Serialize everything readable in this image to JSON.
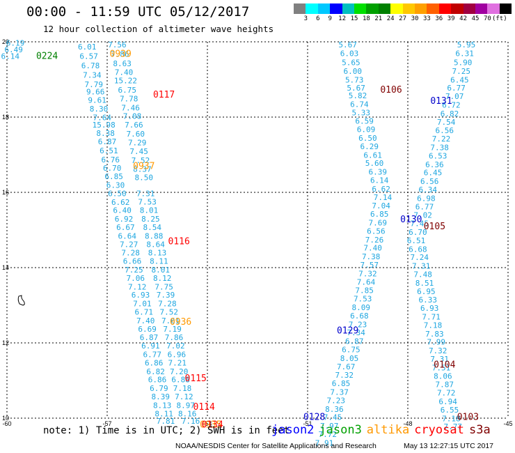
{
  "header": {
    "title": "00:00 - 11:59 UTC 05/12/2017",
    "subtitle": "12 hour collection of altimeter wave heights"
  },
  "scale": {
    "colors": [
      "#808080",
      "#00ffff",
      "#00c8ff",
      "#0000ff",
      "#00c0c0",
      "#00e000",
      "#00a000",
      "#008000",
      "#ffff00",
      "#ffc800",
      "#ffa000",
      "#ff6000",
      "#ff0000",
      "#c00000",
      "#a00040",
      "#a000a0",
      "#e070e0",
      "#000000"
    ],
    "labels": [
      "3",
      "6",
      "9",
      "12",
      "15",
      "18",
      "21",
      "24",
      "27",
      "30",
      "33",
      "36",
      "39",
      "42",
      "45",
      "70",
      "(ft)"
    ]
  },
  "axes": {
    "y_ticks": [
      "20",
      "18",
      "16",
      "14",
      "12",
      "10"
    ],
    "x_ticks": [
      "-60",
      "-57",
      "-54",
      "-51",
      "-48",
      "-45"
    ]
  },
  "tracks": [
    {
      "id": "0224",
      "color": "#008000",
      "lat": 19.55,
      "lon": -58.8
    },
    {
      "id": "0939",
      "color": "#ff9900",
      "lat": 19.6,
      "lon": -56.6
    },
    {
      "id": "0117",
      "color": "#ff0000",
      "lat": 18.52,
      "lon": -55.3
    },
    {
      "id": "0937",
      "color": "#ff9900",
      "lat": 16.62,
      "lon": -55.9
    },
    {
      "id": "0116",
      "color": "#ff0000",
      "lat": 14.62,
      "lon": -54.85
    },
    {
      "id": "0936",
      "color": "#ff9900",
      "lat": 12.48,
      "lon": -54.8
    },
    {
      "id": "0115",
      "color": "#ff0000",
      "lat": 10.98,
      "lon": -54.35
    },
    {
      "id": "0114",
      "color": "#ff0000",
      "lat": 10.22,
      "lon": -54.1
    },
    {
      "id": "0935",
      "color": "#ff9900",
      "lat": 9.75,
      "lon": -53.9
    },
    {
      "id": "0134",
      "color": "#ff0000",
      "lat": 9.75,
      "lon": -53.85
    },
    {
      "id": "0106",
      "color": "#800000",
      "lat": 18.65,
      "lon": -48.5
    },
    {
      "id": "0131",
      "color": "#0000cc",
      "lat": 18.35,
      "lon": -47.0
    },
    {
      "id": "0130",
      "color": "#0000cc",
      "lat": 15.2,
      "lon": -47.9
    },
    {
      "id": "0105",
      "color": "#800000",
      "lat": 15.02,
      "lon": -47.2
    },
    {
      "id": "0129",
      "color": "#0000cc",
      "lat": 12.25,
      "lon": -49.8
    },
    {
      "id": "0104",
      "color": "#800000",
      "lat": 11.34,
      "lon": -46.9
    },
    {
      "id": "0128",
      "color": "#0000cc",
      "lat": 9.95,
      "lon": -50.8
    },
    {
      "id": "0103",
      "color": "#800000",
      "lat": 9.95,
      "lon": -46.2
    }
  ],
  "note": "note: 1) Time is in UTC; 2) SWH is in feet",
  "legend": [
    {
      "label": "jason2",
      "color": "#0000ff"
    },
    {
      "label": "jason3",
      "color": "#00a000"
    },
    {
      "label": "altika",
      "color": "#ff9900"
    },
    {
      "label": "cryosat",
      "color": "#ff0000"
    },
    {
      "label": "s3a",
      "color": "#800000"
    }
  ],
  "footer_left": "NOAA/NESDIS Center for Satellite Applications and Research",
  "footer_right": "May 13 12:27:15 UTC 2017",
  "obs": [
    {
      "t": "6.19",
      "lat": 19.9,
      "lon": -59.75
    },
    {
      "t": "6.49",
      "lat": 19.72,
      "lon": -59.8
    },
    {
      "t": "6.14",
      "lat": 19.55,
      "lon": -59.9
    },
    {
      "t": "6.01",
      "lat": 19.8,
      "lon": -57.6
    },
    {
      "t": "6.57",
      "lat": 19.55,
      "lon": -57.55
    },
    {
      "t": "6.78",
      "lat": 19.3,
      "lon": -57.5
    },
    {
      "t": "7.34",
      "lat": 19.05,
      "lon": -57.45
    },
    {
      "t": "7.79",
      "lat": 18.8,
      "lon": -57.4
    },
    {
      "t": "9.66",
      "lat": 18.6,
      "lon": -57.35
    },
    {
      "t": "9.61",
      "lat": 18.38,
      "lon": -57.3
    },
    {
      "t": "8.30",
      "lat": 18.15,
      "lon": -57.25
    },
    {
      "t": "7.64",
      "lat": 17.92,
      "lon": -57.15
    },
    {
      "t": "15.98",
      "lat": 17.72,
      "lon": -57.1
    },
    {
      "t": "8.38",
      "lat": 17.5,
      "lon": -57.05
    },
    {
      "t": "6.87",
      "lat": 17.28,
      "lon": -57.0
    },
    {
      "t": "6.51",
      "lat": 17.04,
      "lon": -56.95
    },
    {
      "t": "6.76",
      "lat": 16.8,
      "lon": -56.9
    },
    {
      "t": "6.70",
      "lat": 16.57,
      "lon": -56.85
    },
    {
      "t": "6.85",
      "lat": 16.35,
      "lon": -56.8
    },
    {
      "t": "6.30",
      "lat": 16.12,
      "lon": -56.75
    },
    {
      "t": "6.50",
      "lat": 15.9,
      "lon": -56.7
    },
    {
      "t": "6.62",
      "lat": 15.67,
      "lon": -56.6
    },
    {
      "t": "6.40",
      "lat": 15.45,
      "lon": -56.55
    },
    {
      "t": "6.92",
      "lat": 15.22,
      "lon": -56.5
    },
    {
      "t": "6.67",
      "lat": 15.0,
      "lon": -56.45
    },
    {
      "t": "6.64",
      "lat": 14.77,
      "lon": -56.4
    },
    {
      "t": "7.27",
      "lat": 14.55,
      "lon": -56.35
    },
    {
      "t": "7.28",
      "lat": 14.32,
      "lon": -56.3
    },
    {
      "t": "6.66",
      "lat": 14.1,
      "lon": -56.25
    },
    {
      "t": "7.25",
      "lat": 13.87,
      "lon": -56.2
    },
    {
      "t": "7.06",
      "lat": 13.65,
      "lon": -56.15
    },
    {
      "t": "7.12",
      "lat": 13.42,
      "lon": -56.1
    },
    {
      "t": "6.93",
      "lat": 13.2,
      "lon": -56.0
    },
    {
      "t": "7.01",
      "lat": 12.97,
      "lon": -55.95
    },
    {
      "t": "6.71",
      "lat": 12.75,
      "lon": -55.9
    },
    {
      "t": "7.40",
      "lat": 12.52,
      "lon": -55.85
    },
    {
      "t": "6.69",
      "lat": 12.3,
      "lon": -55.8
    },
    {
      "t": "6.87",
      "lat": 12.07,
      "lon": -55.75
    },
    {
      "t": "6.91",
      "lat": 11.85,
      "lon": -55.7
    },
    {
      "t": "6.77",
      "lat": 11.62,
      "lon": -55.65
    },
    {
      "t": "6.86",
      "lat": 11.4,
      "lon": -55.6
    },
    {
      "t": "6.82",
      "lat": 11.17,
      "lon": -55.55
    },
    {
      "t": "6.86",
      "lat": 10.95,
      "lon": -55.5
    },
    {
      "t": "6.79",
      "lat": 10.72,
      "lon": -55.45
    },
    {
      "t": "8.39",
      "lat": 10.5,
      "lon": -55.4
    },
    {
      "t": "8.13",
      "lat": 10.27,
      "lon": -55.35
    },
    {
      "t": "8.11",
      "lat": 10.05,
      "lon": -55.3
    },
    {
      "t": "7.81",
      "lat": 9.85,
      "lon": -55.25
    },
    {
      "t": "7.56",
      "lat": 19.85,
      "lon": -56.7
    },
    {
      "t": "7.86",
      "lat": 19.6,
      "lon": -56.62
    },
    {
      "t": "8.63",
      "lat": 19.35,
      "lon": -56.55
    },
    {
      "t": "7.40",
      "lat": 19.12,
      "lon": -56.5
    },
    {
      "t": "15.22",
      "lat": 18.9,
      "lon": -56.45
    },
    {
      "t": "6.75",
      "lat": 18.65,
      "lon": -56.4
    },
    {
      "t": "7.78",
      "lat": 18.42,
      "lon": -56.35
    },
    {
      "t": "7.46",
      "lat": 18.18,
      "lon": -56.3
    },
    {
      "t": "7.08",
      "lat": 17.95,
      "lon": -56.25
    },
    {
      "t": "7.66",
      "lat": 17.72,
      "lon": -56.2
    },
    {
      "t": "7.60",
      "lat": 17.48,
      "lon": -56.15
    },
    {
      "t": "7.29",
      "lat": 17.25,
      "lon": -56.1
    },
    {
      "t": "7.45",
      "lat": 17.02,
      "lon": -56.05
    },
    {
      "t": "7.52",
      "lat": 16.78,
      "lon": -56.0
    },
    {
      "t": "8.37",
      "lat": 16.55,
      "lon": -55.95
    },
    {
      "t": "8.50",
      "lat": 16.32,
      "lon": -55.9
    },
    {
      "t": "7.31",
      "lat": 15.9,
      "lon": -55.85
    },
    {
      "t": "7.53",
      "lat": 15.68,
      "lon": -55.8
    },
    {
      "t": "8.01",
      "lat": 15.45,
      "lon": -55.75
    },
    {
      "t": "8.25",
      "lat": 15.22,
      "lon": -55.7
    },
    {
      "t": "8.54",
      "lat": 15.0,
      "lon": -55.65
    },
    {
      "t": "8.88",
      "lat": 14.77,
      "lon": -55.6
    },
    {
      "t": "8.64",
      "lat": 14.55,
      "lon": -55.55
    },
    {
      "t": "8.13",
      "lat": 14.32,
      "lon": -55.5
    },
    {
      "t": "8.11",
      "lat": 14.1,
      "lon": -55.45
    },
    {
      "t": "8.01",
      "lat": 13.87,
      "lon": -55.4
    },
    {
      "t": "8.12",
      "lat": 13.65,
      "lon": -55.35
    },
    {
      "t": "7.75",
      "lat": 13.42,
      "lon": -55.3
    },
    {
      "t": "7.39",
      "lat": 13.2,
      "lon": -55.25
    },
    {
      "t": "7.28",
      "lat": 12.97,
      "lon": -55.2
    },
    {
      "t": "7.52",
      "lat": 12.75,
      "lon": -55.15
    },
    {
      "t": "7.61",
      "lat": 12.52,
      "lon": -55.1
    },
    {
      "t": "7.19",
      "lat": 12.3,
      "lon": -55.05
    },
    {
      "t": "7.86",
      "lat": 12.07,
      "lon": -55.0
    },
    {
      "t": "7.02",
      "lat": 11.85,
      "lon": -54.95
    },
    {
      "t": "6.96",
      "lat": 11.62,
      "lon": -54.92
    },
    {
      "t": "7.21",
      "lat": 11.4,
      "lon": -54.9
    },
    {
      "t": "7.20",
      "lat": 11.17,
      "lon": -54.85
    },
    {
      "t": "6.88",
      "lat": 10.95,
      "lon": -54.8
    },
    {
      "t": "7.18",
      "lat": 10.72,
      "lon": -54.75
    },
    {
      "t": "7.12",
      "lat": 10.5,
      "lon": -54.7
    },
    {
      "t": "8.97",
      "lat": 10.27,
      "lon": -54.65
    },
    {
      "t": "8.16",
      "lat": 10.05,
      "lon": -54.6
    },
    {
      "t": "7.16",
      "lat": 9.85,
      "lon": -54.5
    },
    {
      "t": "5.67",
      "lat": 19.85,
      "lon": -49.8
    },
    {
      "t": "6.03",
      "lat": 19.62,
      "lon": -49.75
    },
    {
      "t": "5.65",
      "lat": 19.38,
      "lon": -49.7
    },
    {
      "t": "6.00",
      "lat": 19.15,
      "lon": -49.65
    },
    {
      "t": "5.73",
      "lat": 18.92,
      "lon": -49.6
    },
    {
      "t": "5.67",
      "lat": 18.7,
      "lon": -49.55
    },
    {
      "t": "5.82",
      "lat": 18.5,
      "lon": -49.5
    },
    {
      "t": "6.74",
      "lat": 18.27,
      "lon": -49.45
    },
    {
      "t": "5.33",
      "lat": 18.05,
      "lon": -49.4
    },
    {
      "t": "6.59",
      "lat": 17.82,
      "lon": -49.3
    },
    {
      "t": "6.09",
      "lat": 17.6,
      "lon": -49.25
    },
    {
      "t": "6.50",
      "lat": 17.37,
      "lon": -49.2
    },
    {
      "t": "6.29",
      "lat": 17.15,
      "lon": -49.15
    },
    {
      "t": "6.61",
      "lat": 16.92,
      "lon": -49.05
    },
    {
      "t": "5.60",
      "lat": 16.7,
      "lon": -49.0
    },
    {
      "t": "6.39",
      "lat": 16.47,
      "lon": -48.9
    },
    {
      "t": "6.14",
      "lat": 16.25,
      "lon": -48.85
    },
    {
      "t": "6.62",
      "lat": 16.02,
      "lon": -48.8
    },
    {
      "t": "7.14",
      "lat": 15.8,
      "lon": -48.75
    },
    {
      "t": "7.04",
      "lat": 15.57,
      "lon": -48.8
    },
    {
      "t": "6.85",
      "lat": 15.35,
      "lon": -48.85
    },
    {
      "t": "7.69",
      "lat": 15.12,
      "lon": -48.9
    },
    {
      "t": "6.56",
      "lat": 14.9,
      "lon": -48.95
    },
    {
      "t": "7.26",
      "lat": 14.67,
      "lon": -49.0
    },
    {
      "t": "7.40",
      "lat": 14.45,
      "lon": -49.05
    },
    {
      "t": "7.38",
      "lat": 14.22,
      "lon": -49.1
    },
    {
      "t": "7.57",
      "lat": 14.0,
      "lon": -49.15
    },
    {
      "t": "7.32",
      "lat": 13.77,
      "lon": -49.2
    },
    {
      "t": "7.64",
      "lat": 13.55,
      "lon": -49.25
    },
    {
      "t": "7.85",
      "lat": 13.32,
      "lon": -49.3
    },
    {
      "t": "7.53",
      "lat": 13.1,
      "lon": -49.35
    },
    {
      "t": "8.09",
      "lat": 12.87,
      "lon": -49.4
    },
    {
      "t": "6.68",
      "lat": 12.65,
      "lon": -49.45
    },
    {
      "t": "7.23",
      "lat": 12.42,
      "lon": -49.5
    },
    {
      "t": "7.34",
      "lat": 12.2,
      "lon": -49.55
    },
    {
      "t": "6.87",
      "lat": 11.97,
      "lon": -49.6
    },
    {
      "t": "6.75",
      "lat": 11.75,
      "lon": -49.7
    },
    {
      "t": "8.05",
      "lat": 11.52,
      "lon": -49.75
    },
    {
      "t": "7.67",
      "lat": 11.3,
      "lon": -49.85
    },
    {
      "t": "7.32",
      "lat": 11.07,
      "lon": -49.9
    },
    {
      "t": "6.85",
      "lat": 10.85,
      "lon": -50.0
    },
    {
      "t": "7.37",
      "lat": 10.62,
      "lon": -50.05
    },
    {
      "t": "7.23",
      "lat": 10.4,
      "lon": -50.15
    },
    {
      "t": "8.36",
      "lat": 10.17,
      "lon": -50.2
    },
    {
      "t": "7.45",
      "lat": 9.95,
      "lon": -50.25
    },
    {
      "t": "7.97",
      "lat": 9.72,
      "lon": -50.35
    },
    {
      "t": "7.72",
      "lat": 9.5,
      "lon": -50.4
    },
    {
      "t": "7.91",
      "lat": 9.27,
      "lon": -50.5
    },
    {
      "t": "5.95",
      "lat": 19.85,
      "lon": -46.25
    },
    {
      "t": "6.31",
      "lat": 19.62,
      "lon": -46.3
    },
    {
      "t": "5.90",
      "lat": 19.38,
      "lon": -46.35
    },
    {
      "t": "7.25",
      "lat": 19.15,
      "lon": -46.4
    },
    {
      "t": "6.45",
      "lat": 18.92,
      "lon": -46.45
    },
    {
      "t": "6.77",
      "lat": 18.7,
      "lon": -46.55
    },
    {
      "t": "7.07",
      "lat": 18.48,
      "lon": -46.6
    },
    {
      "t": "6.72",
      "lat": 18.25,
      "lon": -46.7
    },
    {
      "t": "6.82",
      "lat": 18.02,
      "lon": -46.75
    },
    {
      "t": "7.54",
      "lat": 17.8,
      "lon": -46.85
    },
    {
      "t": "6.56",
      "lat": 17.57,
      "lon": -46.9
    },
    {
      "t": "7.22",
      "lat": 17.35,
      "lon": -47.0
    },
    {
      "t": "7.38",
      "lat": 17.12,
      "lon": -47.05
    },
    {
      "t": "6.53",
      "lat": 16.9,
      "lon": -47.1
    },
    {
      "t": "6.36",
      "lat": 16.67,
      "lon": -47.2
    },
    {
      "t": "6.45",
      "lat": 16.45,
      "lon": -47.25
    },
    {
      "t": "6.56",
      "lat": 16.22,
      "lon": -47.35
    },
    {
      "t": "6.34",
      "lat": 16.0,
      "lon": -47.4
    },
    {
      "t": "6.98",
      "lat": 15.77,
      "lon": -47.45
    },
    {
      "t": "6.77",
      "lat": 15.55,
      "lon": -47.5
    },
    {
      "t": "7.02",
      "lat": 15.32,
      "lon": -47.55
    },
    {
      "t": "7.45",
      "lat": 15.1,
      "lon": -47.65
    },
    {
      "t": "6.70",
      "lat": 14.87,
      "lon": -47.7
    },
    {
      "t": "6.51",
      "lat": 14.65,
      "lon": -47.75
    },
    {
      "t": "6.68",
      "lat": 14.42,
      "lon": -47.7
    },
    {
      "t": "7.24",
      "lat": 14.2,
      "lon": -47.65
    },
    {
      "t": "7.31",
      "lat": 13.97,
      "lon": -47.6
    },
    {
      "t": "7.48",
      "lat": 13.75,
      "lon": -47.55
    },
    {
      "t": "8.51",
      "lat": 13.52,
      "lon": -47.5
    },
    {
      "t": "6.95",
      "lat": 13.3,
      "lon": -47.45
    },
    {
      "t": "6.33",
      "lat": 13.07,
      "lon": -47.4
    },
    {
      "t": "6.93",
      "lat": 12.85,
      "lon": -47.35
    },
    {
      "t": "7.71",
      "lat": 12.62,
      "lon": -47.3
    },
    {
      "t": "7.18",
      "lat": 12.4,
      "lon": -47.25
    },
    {
      "t": "7.83",
      "lat": 12.17,
      "lon": -47.2
    },
    {
      "t": "7.99",
      "lat": 11.95,
      "lon": -47.15
    },
    {
      "t": "7.32",
      "lat": 11.72,
      "lon": -47.1
    },
    {
      "t": "7.31",
      "lat": 11.5,
      "lon": -47.05
    },
    {
      "t": "7.51",
      "lat": 11.27,
      "lon": -47.0
    },
    {
      "t": "8.06",
      "lat": 11.05,
      "lon": -46.95
    },
    {
      "t": "7.87",
      "lat": 10.82,
      "lon": -46.9
    },
    {
      "t": "7.72",
      "lat": 10.6,
      "lon": -46.85
    },
    {
      "t": "6.94",
      "lat": 10.37,
      "lon": -46.8
    },
    {
      "t": "6.55",
      "lat": 10.15,
      "lon": -46.75
    },
    {
      "t": "7.18",
      "lat": 9.92,
      "lon": -46.7
    },
    {
      "t": "7.77",
      "lat": 9.7,
      "lon": -46.65
    }
  ]
}
